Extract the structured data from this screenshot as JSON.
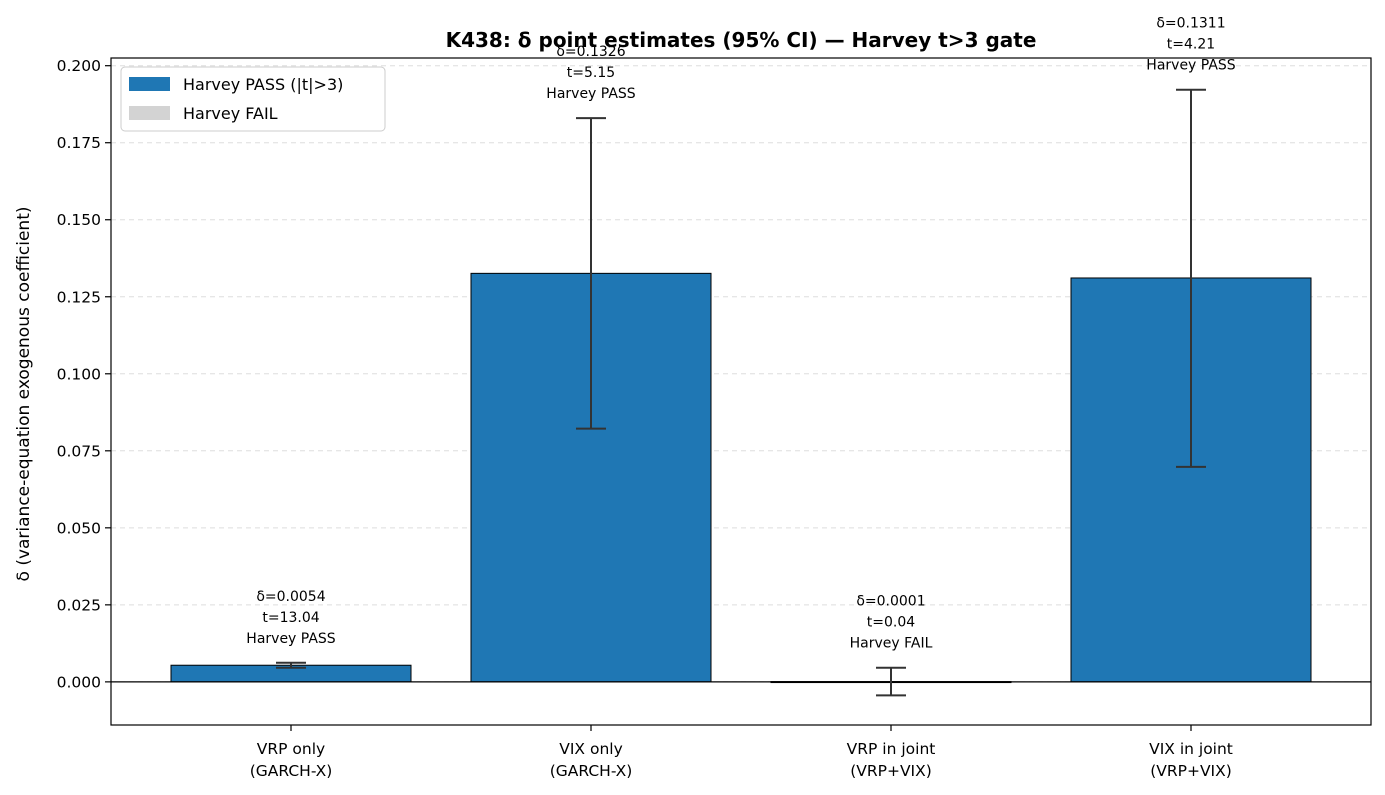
{
  "chart_data": {
    "type": "bar",
    "title": "K438: δ point estimates (95% CI) — Harvey t>3 gate",
    "xlabel": "",
    "ylabel": "δ (variance-equation exogenous coefficient)",
    "ylim": [
      -0.014,
      0.2025
    ],
    "yticks": [
      0.0,
      0.025,
      0.05,
      0.075,
      0.1,
      0.125,
      0.15,
      0.175,
      0.2
    ],
    "ytick_labels": [
      "0.000",
      "0.025",
      "0.050",
      "0.075",
      "0.100",
      "0.125",
      "0.150",
      "0.175",
      "0.200"
    ],
    "grid": "y-dashed",
    "legend_position": "top-left",
    "legend": [
      {
        "label": "Harvey PASS (|t|>3)",
        "color": "#1f77b4"
      },
      {
        "label": "Harvey FAIL",
        "color": "#d3d3d3"
      }
    ],
    "categories": [
      {
        "line1": "VRP only",
        "line2": "(GARCH-X)"
      },
      {
        "line1": "VIX only",
        "line2": "(GARCH-X)"
      },
      {
        "line1": "VRP in joint",
        "line2": "(VRP+VIX)"
      },
      {
        "line1": "VIX in joint",
        "line2": "(VRP+VIX)"
      }
    ],
    "bars": [
      {
        "value": 0.0054,
        "ci_low": 0.0046,
        "ci_high": 0.0062,
        "status": "pass",
        "annotation": [
          "δ=0.0054",
          "t=13.04",
          "Harvey PASS"
        ]
      },
      {
        "value": 0.1326,
        "ci_low": 0.0822,
        "ci_high": 0.183,
        "status": "pass",
        "annotation": [
          "δ=0.1326",
          "t=5.15",
          "Harvey PASS"
        ]
      },
      {
        "value": 0.0001,
        "ci_low": -0.0044,
        "ci_high": 0.0046,
        "status": "fail",
        "annotation": [
          "δ=0.0001",
          "t=0.04",
          "Harvey FAIL"
        ]
      },
      {
        "value": 0.1311,
        "ci_low": 0.0698,
        "ci_high": 0.1922,
        "status": "pass",
        "annotation": [
          "δ=0.1311",
          "t=4.21",
          "Harvey PASS"
        ]
      }
    ],
    "colors": {
      "pass": "#1f77b4",
      "fail": "#d3d3d3",
      "errorbar": "#333333",
      "grid": "#dddddd"
    }
  }
}
